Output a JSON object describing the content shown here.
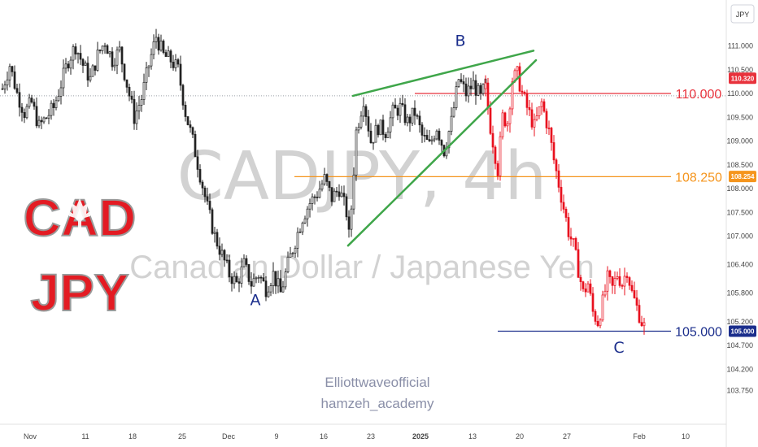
{
  "chart_data": {
    "type": "candlestick",
    "symbol": "CADJPY",
    "timeframe": "4h",
    "title": "CADJPY, 4h",
    "subtitle": "Canadian Dollar / Japanese Yen",
    "currency_label": "JPY",
    "ylim": [
      103.5,
      111.3
    ],
    "y_ticks": [
      "111.000",
      "110.500",
      "110.000",
      "109.500",
      "109.000",
      "108.500",
      "108.000",
      "107.500",
      "107.000",
      "106.400",
      "105.800",
      "105.200",
      "104.700",
      "104.200",
      "103.750"
    ],
    "x_ticks": [
      "Nov",
      "11",
      "18",
      "25",
      "Dec",
      "9",
      "16",
      "23",
      "2025",
      "13",
      "20",
      "27",
      "Feb",
      "10"
    ],
    "price_path": [
      [
        0,
        110.1
      ],
      [
        3,
        110.6
      ],
      [
        6,
        110.0
      ],
      [
        9,
        109.6
      ],
      [
        12,
        109.8
      ],
      [
        15,
        109.3
      ],
      [
        18,
        109.5
      ],
      [
        21,
        109.7
      ],
      [
        24,
        110.2
      ],
      [
        27,
        110.7
      ],
      [
        30,
        111.0
      ],
      [
        33,
        110.6
      ],
      [
        36,
        110.3
      ],
      [
        39,
        110.8
      ],
      [
        42,
        111.1
      ],
      [
        45,
        110.7
      ],
      [
        48,
        110.9
      ],
      [
        51,
        110.2
      ],
      [
        54,
        109.5
      ],
      [
        57,
        109.9
      ],
      [
        60,
        110.6
      ],
      [
        63,
        111.2
      ],
      [
        66,
        110.8
      ],
      [
        69,
        110.7
      ],
      [
        72,
        110.5
      ],
      [
        75,
        109.6
      ],
      [
        78,
        109.0
      ],
      [
        81,
        108.3
      ],
      [
        84,
        107.6
      ],
      [
        87,
        107.0
      ],
      [
        90,
        106.6
      ],
      [
        93,
        106.2
      ],
      [
        96,
        106.0
      ],
      [
        99,
        106.4
      ],
      [
        102,
        106.0
      ],
      [
        105,
        106.2
      ],
      [
        108,
        105.9
      ],
      [
        111,
        106.2
      ],
      [
        114,
        105.8
      ],
      [
        117,
        106.4
      ],
      [
        120,
        106.9
      ],
      [
        123,
        107.4
      ],
      [
        126,
        107.7
      ],
      [
        129,
        107.9
      ],
      [
        132,
        108.2
      ],
      [
        135,
        107.8
      ],
      [
        138,
        108.0
      ],
      [
        141,
        107.5
      ],
      [
        142,
        107.0
      ],
      [
        143,
        107.6
      ],
      [
        145,
        109.2
      ],
      [
        148,
        109.9
      ],
      [
        151,
        109.0
      ],
      [
        154,
        109.3
      ],
      [
        157,
        109.2
      ],
      [
        160,
        109.6
      ],
      [
        163,
        109.7
      ],
      [
        166,
        109.4
      ],
      [
        169,
        109.6
      ],
      [
        172,
        109.1
      ],
      [
        175,
        108.9
      ],
      [
        178,
        109.3
      ],
      [
        181,
        108.8
      ],
      [
        184,
        109.4
      ],
      [
        187,
        110.3
      ],
      [
        190,
        110.0
      ],
      [
        193,
        110.2
      ],
      [
        196,
        109.9
      ],
      [
        198,
        110.2
      ]
    ],
    "price_path_red": [
      [
        198,
        110.1
      ],
      [
        200,
        109.3
      ],
      [
        203,
        108.4
      ],
      [
        205,
        109.5
      ],
      [
        207,
        109.4
      ],
      [
        209,
        110.3
      ],
      [
        211,
        110.4
      ],
      [
        213,
        110.0
      ],
      [
        215,
        109.7
      ],
      [
        218,
        109.3
      ],
      [
        221,
        109.8
      ],
      [
        224,
        109.2
      ],
      [
        226,
        108.6
      ],
      [
        228,
        108.1
      ],
      [
        230,
        107.6
      ],
      [
        232,
        107.1
      ],
      [
        234,
        106.8
      ],
      [
        236,
        106.3
      ],
      [
        238,
        105.8
      ],
      [
        240,
        106.0
      ],
      [
        242,
        105.4
      ],
      [
        244,
        105.2
      ],
      [
        246,
        105.6
      ],
      [
        248,
        106.1
      ],
      [
        250,
        105.9
      ],
      [
        252,
        106.2
      ],
      [
        254,
        106.0
      ],
      [
        256,
        106.3
      ],
      [
        258,
        105.8
      ],
      [
        260,
        105.5
      ],
      [
        262,
        105.2
      ],
      [
        263,
        105.1
      ]
    ],
    "levels": [
      {
        "label": "110.000",
        "value": 110.0,
        "color": "#e8323c"
      },
      {
        "label": "108.250",
        "value": 108.25,
        "color": "#f5951d"
      },
      {
        "label": "105.000",
        "value": 105.0,
        "color": "#1b2e8c"
      }
    ],
    "price_tags": [
      {
        "label": "110.320",
        "value": 110.32,
        "color": "#e8323c"
      },
      {
        "label": "108.254",
        "value": 108.254,
        "color": "#f5951d"
      },
      {
        "label": "105.000",
        "value": 105.0,
        "color": "#1b2e8c"
      }
    ],
    "reference_line": 109.95,
    "wave_labels": [
      {
        "label": "A",
        "price": 105.55,
        "bar": 104
      },
      {
        "label": "B",
        "price": 111.0,
        "bar": 188
      },
      {
        "label": "C",
        "price": 104.55,
        "bar": 253
      }
    ],
    "trendlines": [
      {
        "from": [
          144,
          109.95
        ],
        "to": [
          218,
          110.9
        ],
        "color": "#3fa64a"
      },
      {
        "from": [
          142,
          106.8
        ],
        "to": [
          219,
          110.7
        ],
        "color": "#3fa64a"
      }
    ],
    "colors": {
      "candle": "#222222",
      "decline": "#e8101e",
      "trend": "#3fa64a"
    }
  },
  "logo": {
    "line1": "CAD",
    "line2": "JPY"
  },
  "credits": {
    "line1": "Elliottwaveofficial",
    "line2": "hamzeh_academy"
  }
}
